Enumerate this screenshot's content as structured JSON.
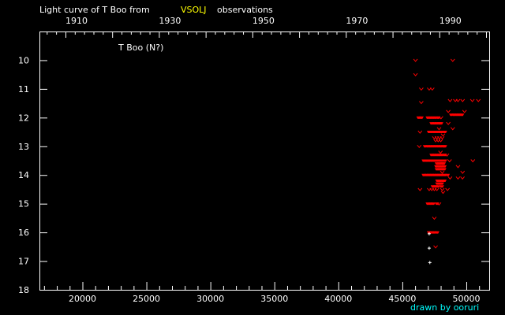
{
  "chart_data": {
    "type": "scatter",
    "title": {
      "prefix": "Light curve of T Boo from",
      "source": "VSOLJ",
      "suffix": "observations"
    },
    "star_label": "T Boo (N?)",
    "credit": "drawn by ooruri",
    "xlim": [
      16640,
      51790
    ],
    "ylim": [
      9,
      18
    ],
    "y_inverted": true,
    "x_ticks": [
      20000,
      25000,
      30000,
      35000,
      40000,
      45000,
      50000
    ],
    "x_tick_labels": [
      "20000",
      "25000",
      "30000",
      "35000",
      "40000",
      "45000",
      "50000"
    ],
    "y_ticks": [
      10,
      11,
      12,
      13,
      14,
      15,
      16,
      17,
      18
    ],
    "y_tick_labels": [
      "10",
      "11",
      "12",
      "13",
      "14",
      "15",
      "16",
      "17",
      "18"
    ],
    "top_axis_years": [
      1910,
      1930,
      1950,
      1970,
      1990
    ],
    "top_axis_year_labels": [
      "1910",
      "1930",
      "1950",
      "1970",
      "1990"
    ],
    "colors": {
      "background": "#000000",
      "axes": "#ffffff",
      "observation": "#ff0000",
      "fainter_than": "#ff0000",
      "other": "#ffffff",
      "title_source": "#ffff00",
      "credit": "#00ffff"
    },
    "series": [
      {
        "kind": "observation",
        "marker": "filled",
        "points": [
          [
            48834,
            11.9
          ],
          [
            49050,
            11.9
          ],
          [
            49250,
            11.9
          ],
          [
            49450,
            11.9
          ],
          [
            49650,
            11.9
          ],
          [
            46280,
            12.0
          ],
          [
            46480,
            12.0
          ],
          [
            47000,
            12.0
          ],
          [
            47200,
            12.0
          ],
          [
            47400,
            12.0
          ],
          [
            47600,
            12.0
          ],
          [
            47810,
            12.0
          ],
          [
            47300,
            12.2
          ],
          [
            47500,
            12.2
          ],
          [
            47700,
            12.2
          ],
          [
            47900,
            12.2
          ],
          [
            48020,
            12.2
          ],
          [
            47100,
            12.5
          ],
          [
            47300,
            12.5
          ],
          [
            47500,
            12.5
          ],
          [
            47700,
            12.5
          ],
          [
            47900,
            12.5
          ],
          [
            48100,
            12.5
          ],
          [
            48320,
            12.5
          ],
          [
            46790,
            13.0
          ],
          [
            47000,
            13.0
          ],
          [
            47200,
            13.0
          ],
          [
            47400,
            13.0
          ],
          [
            47600,
            13.0
          ],
          [
            47800,
            13.0
          ],
          [
            48000,
            13.0
          ],
          [
            48200,
            13.0
          ],
          [
            48320,
            13.0
          ],
          [
            47300,
            13.3
          ],
          [
            47500,
            13.3
          ],
          [
            47700,
            13.3
          ],
          [
            47900,
            13.3
          ],
          [
            48100,
            13.3
          ],
          [
            48320,
            13.3
          ],
          [
            46690,
            13.5
          ],
          [
            46900,
            13.5
          ],
          [
            47100,
            13.5
          ],
          [
            47300,
            13.5
          ],
          [
            47500,
            13.5
          ],
          [
            47700,
            13.5
          ],
          [
            47900,
            13.5
          ],
          [
            48100,
            13.5
          ],
          [
            48320,
            13.5
          ],
          [
            47710,
            13.6
          ],
          [
            47900,
            13.6
          ],
          [
            48100,
            13.6
          ],
          [
            48220,
            13.6
          ],
          [
            47670,
            13.7
          ],
          [
            47870,
            13.7
          ],
          [
            48070,
            13.7
          ],
          [
            48280,
            13.7
          ],
          [
            47710,
            13.8
          ],
          [
            47900,
            13.8
          ],
          [
            48100,
            13.8
          ],
          [
            48260,
            13.8
          ],
          [
            46690,
            14.0
          ],
          [
            46900,
            14.0
          ],
          [
            47100,
            14.0
          ],
          [
            47300,
            14.0
          ],
          [
            47500,
            14.0
          ],
          [
            47700,
            14.0
          ],
          [
            47900,
            14.0
          ],
          [
            48100,
            14.0
          ],
          [
            48300,
            14.0
          ],
          [
            48530,
            14.0
          ],
          [
            47750,
            14.2
          ],
          [
            47950,
            14.2
          ],
          [
            48150,
            14.2
          ],
          [
            48280,
            14.2
          ],
          [
            47750,
            14.3
          ],
          [
            47920,
            14.3
          ],
          [
            48080,
            14.3
          ],
          [
            47400,
            14.4
          ],
          [
            47600,
            14.4
          ],
          [
            47800,
            14.4
          ],
          [
            48080,
            14.4
          ],
          [
            47000,
            15.0
          ],
          [
            47200,
            15.0
          ],
          [
            47400,
            15.0
          ],
          [
            47710,
            15.0
          ],
          [
            47100,
            16.0
          ],
          [
            47300,
            16.0
          ],
          [
            47500,
            16.0
          ],
          [
            47710,
            16.0
          ]
        ]
      },
      {
        "kind": "fainter_than",
        "marker": "v",
        "points": [
          [
            46030,
            10.0
          ],
          [
            48940,
            10.0
          ],
          [
            46030,
            10.5
          ],
          [
            46480,
            11.0
          ],
          [
            47100,
            11.0
          ],
          [
            47340,
            11.0
          ],
          [
            46480,
            11.47
          ],
          [
            48730,
            11.4
          ],
          [
            49140,
            11.4
          ],
          [
            49350,
            11.4
          ],
          [
            49710,
            11.4
          ],
          [
            50470,
            11.4
          ],
          [
            50940,
            11.4
          ],
          [
            48590,
            11.78
          ],
          [
            49860,
            11.78
          ],
          [
            48020,
            12.0
          ],
          [
            48590,
            12.2
          ],
          [
            47870,
            12.38
          ],
          [
            48940,
            12.38
          ],
          [
            46380,
            12.5
          ],
          [
            48180,
            12.6
          ],
          [
            47500,
            12.7
          ],
          [
            47700,
            12.7
          ],
          [
            47900,
            12.7
          ],
          [
            48120,
            12.7
          ],
          [
            47600,
            12.8
          ],
          [
            47800,
            12.8
          ],
          [
            48000,
            12.8
          ],
          [
            46320,
            13.0
          ],
          [
            47980,
            13.2
          ],
          [
            48490,
            13.3
          ],
          [
            48690,
            13.5
          ],
          [
            50510,
            13.5
          ],
          [
            49350,
            13.7
          ],
          [
            48120,
            13.9
          ],
          [
            49710,
            13.9
          ],
          [
            48730,
            14.1
          ],
          [
            49350,
            14.1
          ],
          [
            49700,
            14.1
          ],
          [
            46380,
            14.5
          ],
          [
            47100,
            14.5
          ],
          [
            47300,
            14.5
          ],
          [
            47500,
            14.5
          ],
          [
            47700,
            14.5
          ],
          [
            48120,
            14.5
          ],
          [
            48530,
            14.5
          ],
          [
            48180,
            14.6
          ],
          [
            47870,
            15.0
          ],
          [
            47500,
            15.5
          ],
          [
            47600,
            16.5
          ]
        ]
      },
      {
        "kind": "other",
        "marker": "plus",
        "points": [
          [
            47100,
            16.05
          ],
          [
            47100,
            16.55
          ],
          [
            47150,
            17.05
          ]
        ]
      }
    ]
  }
}
